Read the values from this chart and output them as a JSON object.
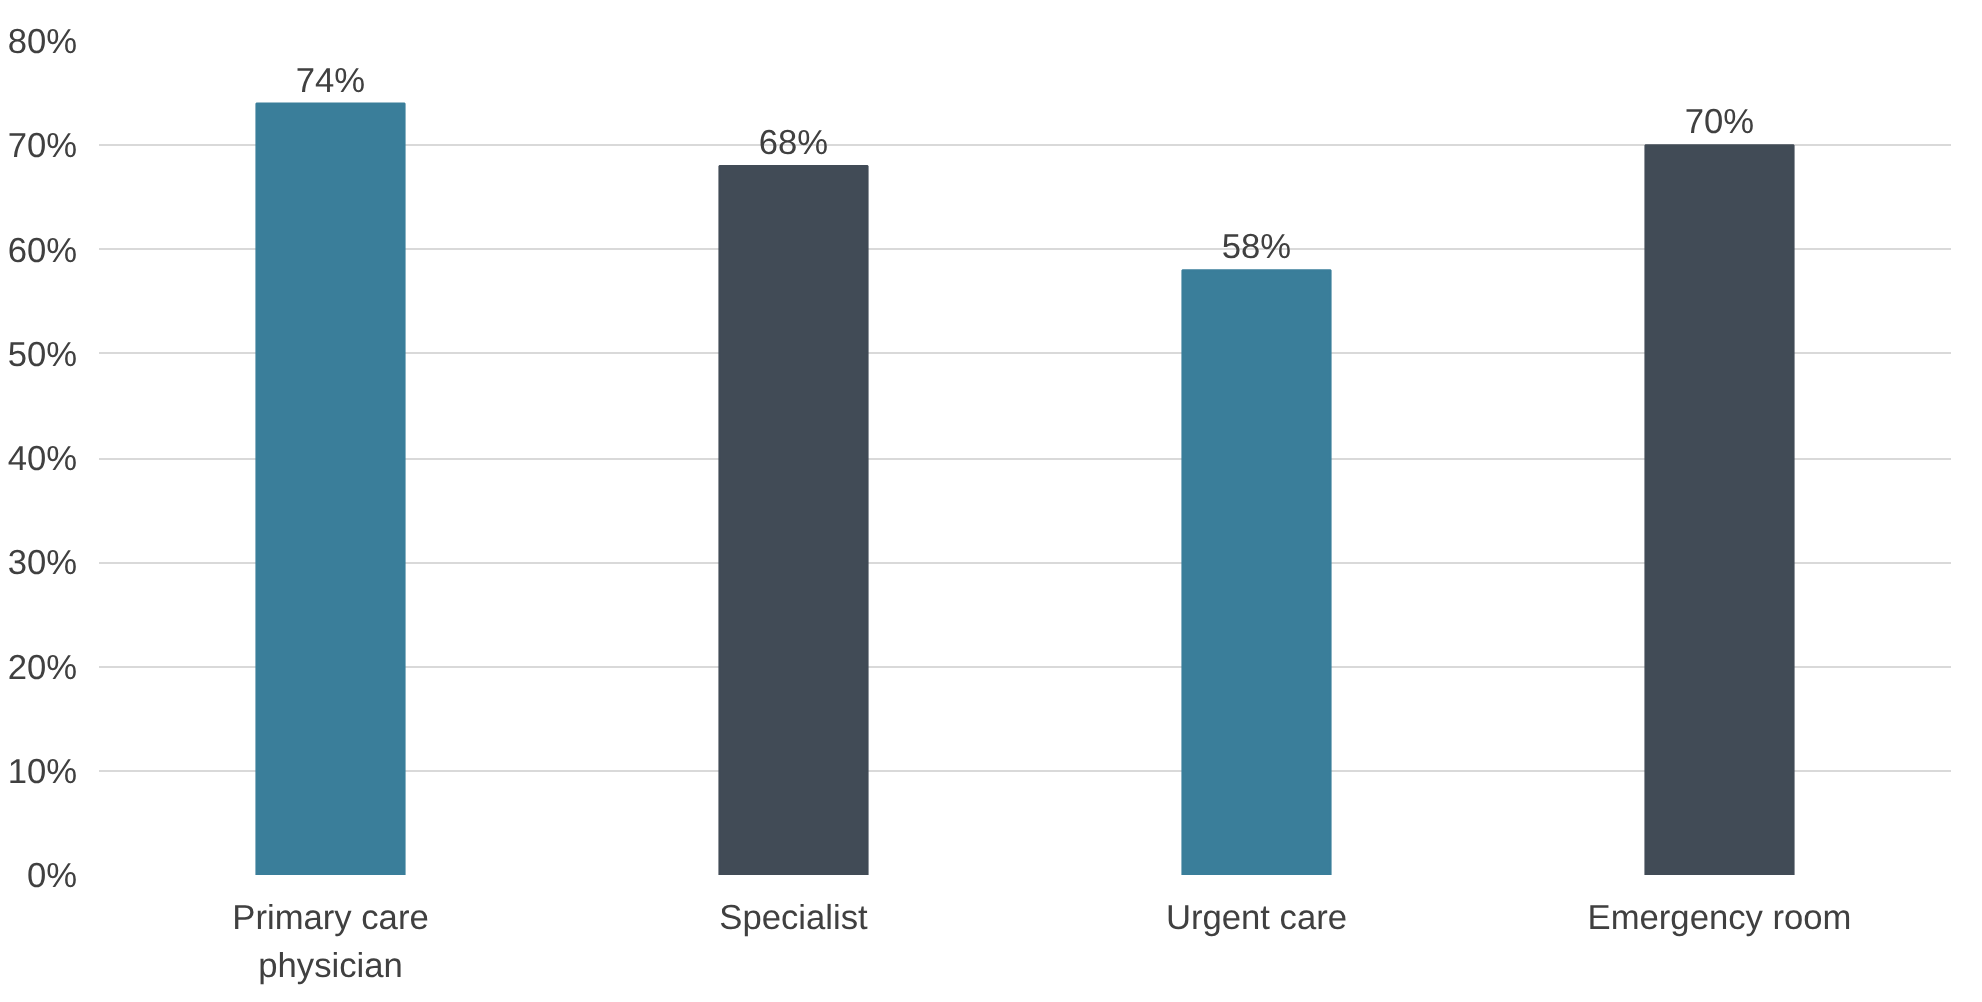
{
  "chart_data": {
    "type": "bar",
    "categories": [
      "Primary care physician",
      "Specialist",
      "Urgent care",
      "Emergency room"
    ],
    "values": [
      74,
      68,
      58,
      70
    ],
    "colors": [
      "#3a7e9a",
      "#414b56",
      "#3a7e9a",
      "#414b56"
    ],
    "value_labels": [
      "74%",
      "68%",
      "58%",
      "70%"
    ],
    "ylim": [
      0,
      80
    ],
    "yticks": [
      {
        "value": 0,
        "label": "0%"
      },
      {
        "value": 10,
        "label": "10%"
      },
      {
        "value": 20,
        "label": "20%"
      },
      {
        "value": 30,
        "label": "30%"
      },
      {
        "value": 40,
        "label": "40%"
      },
      {
        "value": 50,
        "label": "50%"
      },
      {
        "value": 60,
        "label": "60%"
      },
      {
        "value": 70,
        "label": "70%"
      },
      {
        "value": 80,
        "label": "80%"
      }
    ],
    "grid": "y"
  }
}
